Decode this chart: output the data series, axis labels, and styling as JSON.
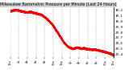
{
  "title": "Milwaukee Barometric Pressure per Minute (Last 24 Hours)",
  "bg_color": "#ffffff",
  "plot_bg_color": "#ffffff",
  "title_bg_color": "#c0c0c0",
  "line_color": "#ff0000",
  "grid_color": "#999999",
  "text_color": "#000000",
  "ylim": [
    29.35,
    30.25
  ],
  "yticks": [
    29.4,
    29.5,
    29.6,
    29.7,
    29.8,
    29.9,
    30.0,
    30.1,
    30.2
  ],
  "ylabel_fontsize": 3.0,
  "title_fontsize": 3.5,
  "x_data": [
    0,
    30,
    60,
    90,
    120,
    150,
    180,
    210,
    240,
    270,
    300,
    330,
    360,
    390,
    420,
    450,
    480,
    510,
    540,
    570,
    600,
    630,
    660,
    690,
    720,
    750,
    780,
    810,
    840,
    870,
    900,
    930,
    960,
    990,
    1020,
    1050,
    1080,
    1110,
    1140,
    1170,
    1200,
    1230,
    1260,
    1290,
    1320,
    1350,
    1380,
    1410,
    1439
  ],
  "y_data": [
    30.18,
    30.19,
    30.2,
    30.2,
    30.19,
    30.18,
    30.17,
    30.16,
    30.16,
    30.17,
    30.16,
    30.15,
    30.14,
    30.13,
    30.12,
    30.1,
    30.07,
    30.04,
    30.0,
    29.96,
    29.91,
    29.85,
    29.79,
    29.73,
    29.67,
    29.61,
    29.57,
    29.54,
    29.52,
    29.51,
    29.52,
    29.53,
    29.52,
    29.51,
    29.52,
    29.51,
    29.5,
    29.5,
    29.49,
    29.5,
    29.49,
    29.48,
    29.47,
    29.46,
    29.45,
    29.44,
    29.43,
    29.41,
    29.39
  ],
  "markersize": 0.5,
  "linewidth": 0.0,
  "num_xticks": 25
}
